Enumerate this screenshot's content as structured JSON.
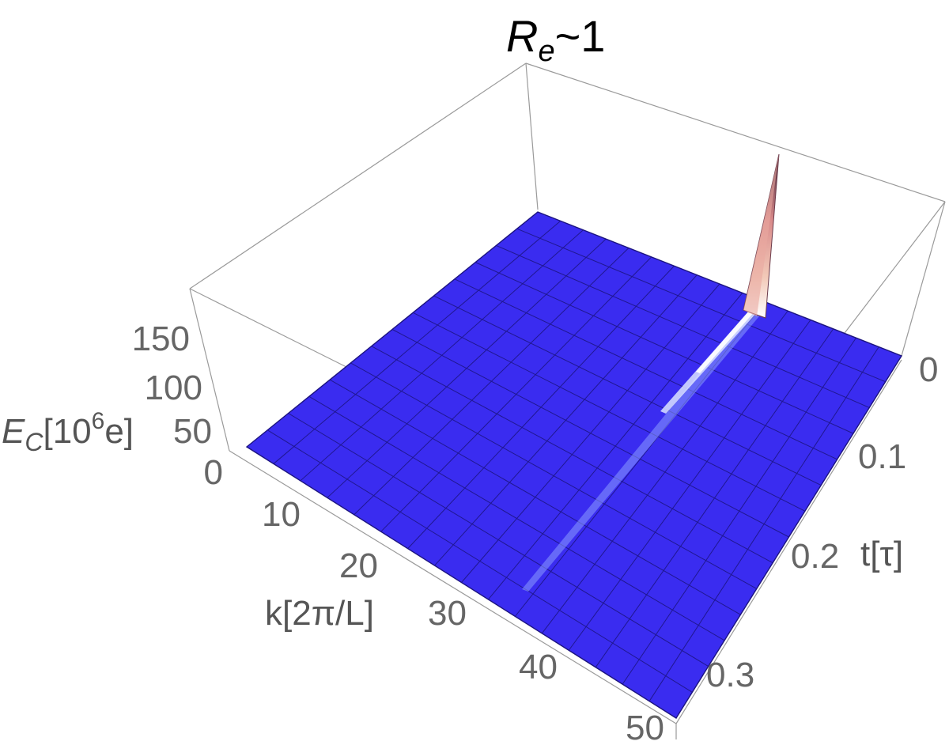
{
  "chart_data": {
    "type": "surface3d",
    "title": {
      "main": "R",
      "subscript": "e",
      "suffix": "~1"
    },
    "x_axis": {
      "label": "k[2π/L]",
      "range": [
        0,
        50
      ],
      "ticks": [
        "10",
        "20",
        "30",
        "40",
        "50"
      ]
    },
    "y_axis": {
      "label": "t[τ]",
      "range": [
        0,
        0.32
      ],
      "ticks": [
        "0",
        "0.1",
        "0.2",
        "0.3"
      ]
    },
    "z_axis": {
      "label_main": "E",
      "label_sub": "C",
      "label_rest_open": "[10",
      "label_sup": "6",
      "label_rest_close": "e]",
      "range": [
        0,
        180
      ],
      "ticks": [
        "0",
        "50",
        "100",
        "150"
      ]
    },
    "ridge": {
      "description_k": 24,
      "peak_t": 0,
      "peak_value": 180
    },
    "colors": {
      "surface": "#3a2cf0",
      "grid": "#1c1480",
      "box": "#9a9a9a",
      "peak": "#d98a8a"
    },
    "grid_on": true
  }
}
